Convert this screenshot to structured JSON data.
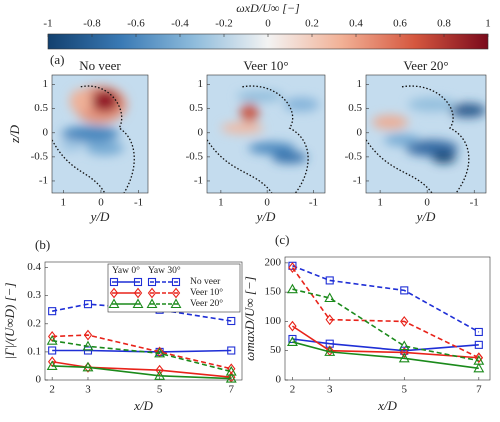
{
  "chart_data": [
    {
      "type": "heatmap",
      "label": "(a)",
      "colorbar_label": "ωxD/U∞ [−]",
      "clim": [
        -1,
        1
      ],
      "cticks": [
        -1,
        -0.8,
        -0.6,
        -0.4,
        -0.2,
        0,
        0.2,
        0.4,
        0.6,
        0.8,
        1
      ],
      "colormap": [
        "#12406f",
        "#3a7ab5",
        "#8fbcdc",
        "#f3f3f3",
        "#f2b196",
        "#d5573f",
        "#7a0a1c"
      ],
      "panels": [
        "No veer",
        "Veer 10°",
        "Veer 20°"
      ],
      "xlabel": "y/D",
      "ylabel": "z/D",
      "xlim": [
        1.3,
        -1.25
      ],
      "ylim": [
        -1.25,
        1.2
      ],
      "xticks": [
        1,
        0,
        -1
      ],
      "yticks": [
        1,
        0.5,
        0,
        -0.5,
        -1
      ]
    },
    {
      "type": "line",
      "label": "(b)",
      "xlabel": "x/D",
      "ylabel": "|Γ|/(U∞D) [−]",
      "x": [
        2,
        3,
        5,
        7
      ],
      "xlim": [
        1.8,
        7.3
      ],
      "xticks": [
        2,
        3,
        5,
        7
      ],
      "ylim": [
        0,
        0.42
      ],
      "yticks": [
        0,
        0.1,
        0.2,
        0.3,
        0.4
      ],
      "legend": {
        "corner": "upper right",
        "columns": [
          "Yaw 0°",
          "Yaw 30°"
        ],
        "entries": [
          "No veer",
          "Veer 10°",
          "Veer 20°"
        ]
      },
      "series": [
        {
          "color": "#1f2fd6",
          "marker": "square",
          "dashed": false,
          "values": [
            0.105,
            0.105,
            0.1,
            0.105
          ]
        },
        {
          "color": "#e8231a",
          "marker": "diamond",
          "dashed": false,
          "values": [
            0.065,
            0.045,
            0.035,
            0.01
          ]
        },
        {
          "color": "#1b8a1b",
          "marker": "triangle",
          "dashed": false,
          "values": [
            0.05,
            0.045,
            0.015,
            0.005
          ]
        },
        {
          "color": "#1f2fd6",
          "marker": "square",
          "dashed": true,
          "values": [
            0.245,
            0.27,
            0.25,
            0.21
          ]
        },
        {
          "color": "#e8231a",
          "marker": "diamond",
          "dashed": true,
          "values": [
            0.155,
            0.16,
            0.1,
            0.04
          ]
        },
        {
          "color": "#1b8a1b",
          "marker": "triangle",
          "dashed": true,
          "values": [
            0.14,
            0.12,
            0.095,
            0.03
          ]
        }
      ]
    },
    {
      "type": "line",
      "label": "(c)",
      "xlabel": "x/D",
      "ylabel": "ωmaxD/U∞ [−]",
      "x": [
        2,
        3,
        5,
        7
      ],
      "xlim": [
        1.8,
        7.3
      ],
      "xticks": [
        2,
        3,
        5,
        7
      ],
      "ylim": [
        0,
        210
      ],
      "yticks": [
        0,
        50,
        100,
        150,
        200
      ],
      "series": [
        {
          "color": "#1f2fd6",
          "marker": "square",
          "dashed": false,
          "values": [
            70,
            62,
            50,
            60
          ]
        },
        {
          "color": "#e8231a",
          "marker": "diamond",
          "dashed": false,
          "values": [
            92,
            50,
            47,
            38
          ]
        },
        {
          "color": "#1b8a1b",
          "marker": "triangle",
          "dashed": false,
          "values": [
            65,
            48,
            37,
            20
          ]
        },
        {
          "color": "#1f2fd6",
          "marker": "square",
          "dashed": true,
          "values": [
            195,
            170,
            153,
            82
          ]
        },
        {
          "color": "#e8231a",
          "marker": "diamond",
          "dashed": true,
          "values": [
            192,
            103,
            100,
            38
          ]
        },
        {
          "color": "#1b8a1b",
          "marker": "triangle",
          "dashed": true,
          "values": [
            155,
            140,
            58,
            33
          ]
        }
      ]
    }
  ]
}
